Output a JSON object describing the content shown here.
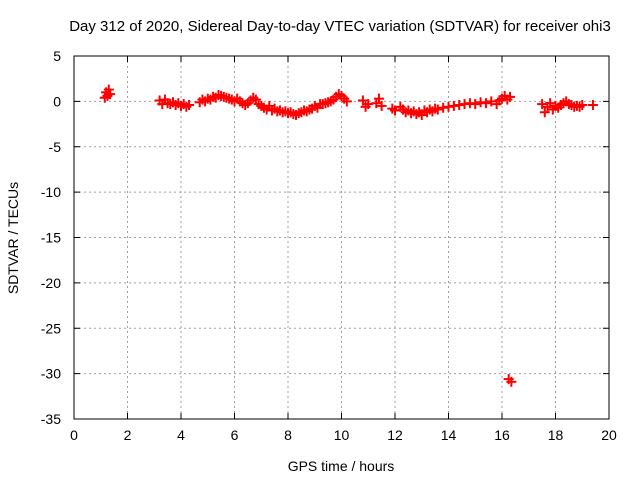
{
  "chart_data": {
    "type": "scatter",
    "title": "Day 312 of 2020, Sidereal Day-to-day VTEC variation (SDTVAR) for receiver ohi3",
    "xlabel": "GPS time / hours",
    "ylabel": "SDTVAR / TECUs",
    "xlim": [
      0,
      20
    ],
    "ylim": [
      -35,
      5
    ],
    "x_ticks": [
      0,
      2,
      4,
      6,
      8,
      10,
      12,
      14,
      16,
      18,
      20
    ],
    "y_ticks": [
      5,
      0,
      -5,
      -10,
      -15,
      -20,
      -25,
      -30,
      -35
    ],
    "grid": true,
    "marker": "plus",
    "color": "#ff0000",
    "series": [
      {
        "name": "SDTVAR",
        "points": [
          [
            1.15,
            0.4
          ],
          [
            1.2,
            1.0
          ],
          [
            1.25,
            0.6
          ],
          [
            1.3,
            1.3
          ],
          [
            1.35,
            0.8
          ],
          [
            3.2,
            0.1
          ],
          [
            3.3,
            -0.3
          ],
          [
            3.4,
            0.2
          ],
          [
            3.5,
            -0.2
          ],
          [
            3.6,
            -0.3
          ],
          [
            3.7,
            -0.1
          ],
          [
            3.8,
            -0.4
          ],
          [
            3.9,
            -0.2
          ],
          [
            4.0,
            -0.5
          ],
          [
            4.1,
            -0.3
          ],
          [
            4.2,
            -0.6
          ],
          [
            4.3,
            -0.4
          ],
          [
            4.7,
            -0.1
          ],
          [
            4.8,
            0.2
          ],
          [
            4.9,
            0.0
          ],
          [
            5.0,
            0.3
          ],
          [
            5.1,
            0.2
          ],
          [
            5.2,
            0.5
          ],
          [
            5.3,
            0.4
          ],
          [
            5.4,
            0.7
          ],
          [
            5.5,
            0.6
          ],
          [
            5.6,
            0.5
          ],
          [
            5.7,
            0.4
          ],
          [
            5.8,
            0.3
          ],
          [
            5.9,
            0.2
          ],
          [
            6.0,
            0.0
          ],
          [
            6.1,
            0.3
          ],
          [
            6.2,
            0.0
          ],
          [
            6.3,
            -0.2
          ],
          [
            6.4,
            -0.4
          ],
          [
            6.5,
            -0.2
          ],
          [
            6.6,
            0.1
          ],
          [
            6.7,
            0.4
          ],
          [
            6.8,
            0.2
          ],
          [
            6.9,
            -0.3
          ],
          [
            7.0,
            -0.5
          ],
          [
            7.1,
            -0.7
          ],
          [
            7.2,
            -0.9
          ],
          [
            7.3,
            -0.5
          ],
          [
            7.4,
            -1.0
          ],
          [
            7.5,
            -0.8
          ],
          [
            7.6,
            -1.1
          ],
          [
            7.7,
            -1.0
          ],
          [
            7.8,
            -1.2
          ],
          [
            7.9,
            -1.1
          ],
          [
            8.0,
            -1.3
          ],
          [
            8.1,
            -1.2
          ],
          [
            8.2,
            -1.4
          ],
          [
            8.3,
            -1.5
          ],
          [
            8.4,
            -1.3
          ],
          [
            8.5,
            -1.2
          ],
          [
            8.6,
            -1.0
          ],
          [
            8.7,
            -1.1
          ],
          [
            8.8,
            -0.9
          ],
          [
            8.9,
            -0.8
          ],
          [
            9.0,
            -0.5
          ],
          [
            9.1,
            -0.7
          ],
          [
            9.2,
            -0.3
          ],
          [
            9.3,
            -0.3
          ],
          [
            9.4,
            -0.2
          ],
          [
            9.5,
            -0.1
          ],
          [
            9.6,
            0.0
          ],
          [
            9.7,
            0.2
          ],
          [
            9.8,
            0.5
          ],
          [
            9.9,
            0.8
          ],
          [
            10.0,
            0.6
          ],
          [
            10.1,
            0.3
          ],
          [
            10.2,
            0.0
          ],
          [
            10.8,
            0.1
          ],
          [
            10.9,
            -0.6
          ],
          [
            11.0,
            -0.3
          ],
          [
            11.3,
            -0.2
          ],
          [
            11.4,
            0.3
          ],
          [
            11.5,
            -0.5
          ],
          [
            11.9,
            -0.8
          ],
          [
            12.0,
            -1.0
          ],
          [
            12.2,
            -0.6
          ],
          [
            12.3,
            -0.9
          ],
          [
            12.4,
            -1.2
          ],
          [
            12.5,
            -1.0
          ],
          [
            12.6,
            -1.3
          ],
          [
            12.7,
            -1.1
          ],
          [
            12.8,
            -1.4
          ],
          [
            12.9,
            -1.2
          ],
          [
            13.0,
            -1.5
          ],
          [
            13.1,
            -1.0
          ],
          [
            13.2,
            -1.2
          ],
          [
            13.3,
            -0.9
          ],
          [
            13.4,
            -1.1
          ],
          [
            13.5,
            -0.8
          ],
          [
            13.6,
            -0.9
          ],
          [
            13.8,
            -0.7
          ],
          [
            14.0,
            -0.6
          ],
          [
            14.2,
            -0.5
          ],
          [
            14.4,
            -0.4
          ],
          [
            14.6,
            -0.3
          ],
          [
            14.8,
            -0.2
          ],
          [
            15.0,
            -0.3
          ],
          [
            15.2,
            -0.1
          ],
          [
            15.4,
            -0.2
          ],
          [
            15.6,
            0.0
          ],
          [
            15.8,
            -0.3
          ],
          [
            15.9,
            0.1
          ],
          [
            16.0,
            0.3
          ],
          [
            16.1,
            0.6
          ],
          [
            16.2,
            0.2
          ],
          [
            16.3,
            0.5
          ],
          [
            16.25,
            -30.6
          ],
          [
            16.35,
            -30.9
          ],
          [
            17.5,
            -0.3
          ],
          [
            17.6,
            -1.2
          ],
          [
            17.7,
            -0.6
          ],
          [
            17.8,
            -0.2
          ],
          [
            17.9,
            -0.9
          ],
          [
            18.0,
            -0.5
          ],
          [
            18.1,
            -0.7
          ],
          [
            18.2,
            -0.4
          ],
          [
            18.3,
            -0.2
          ],
          [
            18.4,
            0.0
          ],
          [
            18.5,
            -0.3
          ],
          [
            18.6,
            -0.4
          ],
          [
            18.7,
            -0.6
          ],
          [
            18.8,
            -0.5
          ],
          [
            18.9,
            -0.6
          ],
          [
            19.0,
            -0.4
          ],
          [
            19.4,
            -0.4
          ]
        ]
      }
    ]
  }
}
